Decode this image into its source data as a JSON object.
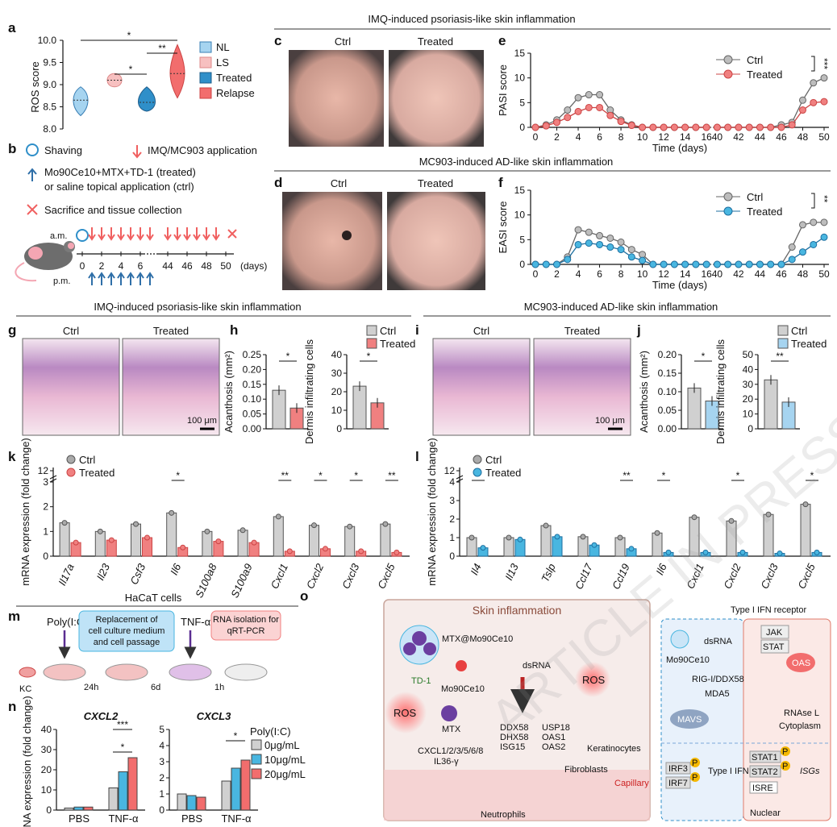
{
  "titles": {
    "imq_top": "IMQ-induced psoriasis-like skin inflammation",
    "mc903_mid": "MC903-induced AD-like skin inflammation",
    "imq_hist": "IMQ-induced psoriasis-like skin inflammation",
    "mc903_hist": "MC903-induced AD-like skin inflammation"
  },
  "panel_letters": [
    "a",
    "b",
    "c",
    "d",
    "e",
    "f",
    "g",
    "h",
    "i",
    "j",
    "k",
    "l",
    "m",
    "n",
    "o"
  ],
  "photo_labels": {
    "ctrl": "Ctrl",
    "treated": "Treated",
    "scale": "100 μm"
  },
  "colors": {
    "gray": "#bfbfbf",
    "red": "#f08080",
    "blue": "#49b6e0",
    "lightblue": "#a6d4f0",
    "pink": "#f7c0c0",
    "darkblue": "#2f8fc9",
    "salmon": "#f26d6d"
  },
  "panel_b": {
    "shaving": "Shaving",
    "imq": "IMQ/MC903 application",
    "treat_line1": "Mo90Ce10+MTX+TD-1 (treated)",
    "treat_line2": "or saline topical application (ctrl)",
    "sacrifice": "Sacrifice and tissue collection",
    "am": "a.m.",
    "pm": "p.m.",
    "days_label": "(days)",
    "ticks": [
      "0",
      "2",
      "4",
      "6",
      "44",
      "46",
      "48",
      "50"
    ]
  },
  "panel_m": {
    "title": "HaCaT cells",
    "polyic": "Poly(I:C)",
    "replace1": "Replacement of",
    "replace2": "cell culture medium",
    "replace3": "and cell passage",
    "tnf": "TNF-α",
    "rna1": "RNA isolation for",
    "rna2": "qRT-PCR",
    "kc": "KC",
    "t1": "24h",
    "t2": "6d",
    "t3": "1h"
  },
  "panel_o": {
    "title": "Skin inflammation",
    "mtx_label": "MTX@Mo90Ce10",
    "td1": "TD-1",
    "ros": "ROS",
    "mo": "Mo90Ce10",
    "mtx": "MTX",
    "dsrna": "dsRNA",
    "isgs": [
      "DDX58",
      "USP18",
      "DHX58",
      "OAS1",
      "ISG15",
      "OAS2"
    ],
    "cxcl": "CXCL1/2/3/5/6/8",
    "il36": "IL36-γ",
    "keratinocytes": "Keratinocytes",
    "fibroblasts": "Fibroblasts",
    "capillary": "Capillary",
    "neutrophils": "Neutrophils",
    "receptor": "Type I IFN receptor",
    "jak": "JAK",
    "stat": "STAT",
    "rig": "RIG-I/DDX58",
    "mda5": "MDA5",
    "mavs": "MAVS",
    "oas": "OAS",
    "rnase": "RNAse L",
    "cytoplasm": "Cytoplasm",
    "irf3": "IRF3",
    "irf7": "IRF7",
    "ifn": "Type I IFN",
    "stat1": "STAT1",
    "stat2": "STAT2",
    "isre": "ISRE",
    "isgs_label": "ISGs",
    "nuclear": "Nuclear",
    "p": "P",
    "watermark": "ARTICLE IN PRESS"
  },
  "chart_data": [
    {
      "panel": "a",
      "type": "violin",
      "ylabel": "ROS score",
      "ylim": [
        8.0,
        10.0
      ],
      "yticks": [
        "8.0",
        "8.5",
        "9.0",
        "9.5",
        "10.0"
      ],
      "groups": [
        {
          "name": "NL",
          "median": 8.65,
          "min": 8.3,
          "max": 8.95
        },
        {
          "name": "LS",
          "median": 9.1,
          "min": 8.95,
          "max": 9.25
        },
        {
          "name": "Treated",
          "median": 8.6,
          "min": 8.4,
          "max": 8.95
        },
        {
          "name": "Relapse",
          "median": 9.25,
          "min": 8.7,
          "max": 9.9
        }
      ],
      "significance": [
        "*",
        "*",
        "**"
      ]
    },
    {
      "panel": "e",
      "type": "line",
      "ylabel": "PASI score",
      "xlabel": "Time (days)",
      "ylim": [
        0,
        15
      ],
      "yticks": [
        "0",
        "5",
        "10",
        "15"
      ],
      "xticks": [
        "0",
        "2",
        "4",
        "6",
        "8",
        "10",
        "12",
        "14",
        "16",
        "40",
        "42",
        "44",
        "46",
        "48",
        "50"
      ],
      "x": [
        0,
        1,
        2,
        3,
        4,
        5,
        6,
        7,
        8,
        9,
        10,
        11,
        12,
        13,
        14,
        15,
        16,
        40,
        41,
        42,
        43,
        44,
        45,
        46,
        47,
        48,
        49,
        50
      ],
      "series": [
        {
          "name": "Ctrl",
          "values": [
            0,
            0.5,
            1.5,
            3.5,
            6,
            6.6,
            6.6,
            3.5,
            1.5,
            0.5,
            0,
            0,
            0,
            0,
            0,
            0,
            0,
            0,
            0,
            0,
            0,
            0,
            0,
            0.5,
            1,
            5.5,
            9,
            10
          ]
        },
        {
          "name": "Treated",
          "values": [
            0,
            0.3,
            1,
            2,
            3.2,
            4,
            4,
            2.4,
            1.2,
            0.4,
            0,
            0,
            0,
            0,
            0,
            0,
            0,
            0,
            0,
            0,
            0,
            0,
            0,
            0,
            0.5,
            3.5,
            5,
            5.2
          ]
        }
      ],
      "significance": "***"
    },
    {
      "panel": "f",
      "type": "line",
      "ylabel": "EASI score",
      "xlabel": "Time (days)",
      "ylim": [
        0,
        15
      ],
      "yticks": [
        "0",
        "5",
        "10",
        "15"
      ],
      "xticks": [
        "0",
        "2",
        "4",
        "6",
        "8",
        "10",
        "12",
        "14",
        "16",
        "40",
        "42",
        "44",
        "46",
        "48",
        "50"
      ],
      "x": [
        0,
        1,
        2,
        3,
        4,
        5,
        6,
        7,
        8,
        9,
        10,
        11,
        12,
        13,
        14,
        15,
        16,
        40,
        41,
        42,
        43,
        44,
        45,
        46,
        47,
        48,
        49,
        50
      ],
      "series": [
        {
          "name": "Ctrl",
          "values": [
            0,
            0,
            0,
            1.5,
            7,
            6.5,
            5.8,
            5.3,
            4.5,
            3,
            2,
            0,
            0,
            0,
            0,
            0,
            0,
            0,
            0,
            0,
            0,
            0,
            0,
            0,
            3.5,
            8,
            8.5,
            8.5
          ]
        },
        {
          "name": "Treated",
          "values": [
            0,
            0,
            0,
            1,
            4,
            4.3,
            4,
            3.5,
            3,
            1.5,
            0.8,
            0,
            0,
            0,
            0,
            0,
            0,
            0,
            0,
            0,
            0,
            0,
            0,
            0,
            1,
            2.5,
            4,
            5.5
          ]
        }
      ],
      "significance": "**"
    },
    {
      "panel": "h1",
      "type": "bar",
      "ylabel": "Acanthosis (mm²)",
      "ylim": [
        0,
        0.25
      ],
      "yticks": [
        "0.00",
        "0.05",
        "0.10",
        "0.15",
        "0.20",
        "0.25"
      ],
      "categories": [
        "Ctrl",
        "Treated"
      ],
      "values": [
        0.13,
        0.07
      ],
      "significance": "*"
    },
    {
      "panel": "h2",
      "type": "bar",
      "ylabel": "Dermis infiltrating cells",
      "ylim": [
        0,
        40
      ],
      "yticks": [
        "0",
        "10",
        "20",
        "30",
        "40"
      ],
      "categories": [
        "Ctrl",
        "Treated"
      ],
      "values": [
        23,
        14
      ],
      "significance": "*"
    },
    {
      "panel": "j1",
      "type": "bar",
      "ylabel": "Acanthosis (mm²)",
      "ylim": [
        0,
        0.2
      ],
      "yticks": [
        "0.00",
        "0.05",
        "0.10",
        "0.15",
        "0.20"
      ],
      "categories": [
        "Ctrl",
        "Treated"
      ],
      "values": [
        0.11,
        0.075
      ],
      "significance": "*"
    },
    {
      "panel": "j2",
      "type": "bar",
      "ylabel": "Dermis infiltrating cells",
      "ylim": [
        0,
        50
      ],
      "yticks": [
        "0",
        "10",
        "20",
        "30",
        "40",
        "50"
      ],
      "categories": [
        "Ctrl",
        "Treated"
      ],
      "values": [
        33,
        18
      ],
      "significance": "**"
    },
    {
      "panel": "k",
      "type": "bar",
      "ylabel": "mRNA expression (fold change)",
      "yticks": [
        "0",
        "1",
        "2",
        "3",
        "12"
      ],
      "categories": [
        "Il17a",
        "Il23",
        "Csf3",
        "Il6",
        "S100a8",
        "S100a9",
        "Cxcl1",
        "Cxcl2",
        "Cxcl3",
        "Cxcl5"
      ],
      "series": [
        {
          "name": "Ctrl",
          "values": [
            1.35,
            1.0,
            1.3,
            1.75,
            1.0,
            1.05,
            1.6,
            1.25,
            1.2,
            1.3
          ]
        },
        {
          "name": "Treated",
          "values": [
            0.55,
            0.65,
            0.75,
            0.35,
            0.6,
            0.55,
            0.2,
            0.3,
            0.2,
            0.15
          ]
        }
      ],
      "significance": [
        "",
        "",
        "",
        "*",
        "",
        "",
        "**",
        "*",
        "*",
        "**"
      ]
    },
    {
      "panel": "l",
      "type": "bar",
      "ylabel": "mRNA expression (fold change)",
      "yticks": [
        "0",
        "1",
        "2",
        "3",
        "4",
        "12"
      ],
      "categories": [
        "Il4",
        "Il13",
        "Tslp",
        "Ccl17",
        "Ccl19",
        "Il6",
        "Cxcl1",
        "Cxcl2",
        "Cxcl3",
        "Cxcl5"
      ],
      "series": [
        {
          "name": "Ctrl",
          "values": [
            1.0,
            1.0,
            1.65,
            1.05,
            1.0,
            1.25,
            2.1,
            1.9,
            2.25,
            2.8
          ]
        },
        {
          "name": "Treated",
          "values": [
            0.45,
            0.9,
            1.05,
            0.6,
            0.4,
            0.2,
            0.2,
            0.2,
            0.15,
            0.2
          ]
        }
      ],
      "significance": [
        "*",
        "",
        "",
        "",
        "**",
        "*",
        "",
        "*",
        "",
        "*"
      ]
    },
    {
      "panel": "n1",
      "type": "bar",
      "title": "CXCL2",
      "ylabel": "mRNA expression (fold change)",
      "ylim": [
        0,
        40
      ],
      "yticks": [
        "0",
        "10",
        "20",
        "30",
        "40"
      ],
      "categories": [
        "PBS",
        "TNF-α"
      ],
      "series": [
        {
          "name": "0μg/mL",
          "values": [
            1,
            11
          ]
        },
        {
          "name": "10μg/mL",
          "values": [
            1.5,
            19
          ]
        },
        {
          "name": "20μg/mL",
          "values": [
            1.5,
            26
          ]
        }
      ],
      "significance": [
        "*",
        "***"
      ]
    },
    {
      "panel": "n2",
      "type": "bar",
      "title": "CXCL3",
      "ylim": [
        0,
        5
      ],
      "yticks": [
        "0",
        "1",
        "2",
        "3",
        "4",
        "5"
      ],
      "categories": [
        "PBS",
        "TNF-α"
      ],
      "series": [
        {
          "name": "0μg/mL",
          "values": [
            1,
            1.8
          ]
        },
        {
          "name": "10μg/mL",
          "values": [
            0.9,
            2.6
          ]
        },
        {
          "name": "20μg/mL",
          "values": [
            0.8,
            3.1
          ]
        }
      ],
      "significance": [
        "*"
      ],
      "legend_title": "Poly(I:C)"
    }
  ]
}
